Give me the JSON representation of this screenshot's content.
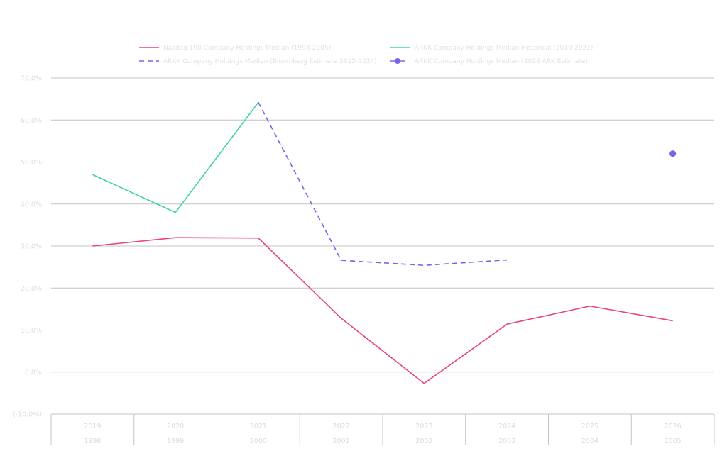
{
  "chart_data": {
    "type": "line",
    "categories_primary": [
      "2019",
      "2020",
      "2021",
      "2022",
      "2023",
      "2024",
      "2025",
      "2026"
    ],
    "categories_secondary": [
      "1998",
      "1999",
      "2000",
      "2001",
      "2002",
      "2003",
      "2004",
      "2005"
    ],
    "yticks": [
      "70.0%",
      "60.0%",
      "50.0%",
      "40.0%",
      "30.0%",
      "20.0%",
      "10.0%",
      "0.0%",
      "(-10.0%)"
    ],
    "ylim": [
      -10,
      70
    ],
    "grid": true,
    "legend_position": "top-center",
    "series": [
      {
        "name": "Nasdaq 100 Company Holdings Median (1998-2005)",
        "style": "solid",
        "color": "#e8457a",
        "values": [
          30.0,
          32.0,
          31.9,
          12.8,
          -2.7,
          11.4,
          15.7,
          12.2
        ]
      },
      {
        "name": "ARKK Company Holdings Median Historical (2019-2021)",
        "style": "solid",
        "color": "#3fd4a0",
        "values": [
          47.0,
          38.0,
          64.2,
          null,
          null,
          null,
          null,
          null
        ]
      },
      {
        "name": "ARKK Company Holdings Median (Bloomberg Estimate 2022-2024)",
        "style": "dashed",
        "color": "#7a63ec",
        "values": [
          null,
          null,
          64.2,
          26.6,
          25.4,
          26.7,
          null,
          null
        ]
      },
      {
        "name": "ARKK Company Holdings Median (2026 ARK Estimate)",
        "style": "marker",
        "color": "#7a63ec",
        "values": [
          null,
          null,
          null,
          null,
          null,
          null,
          null,
          52.0
        ]
      }
    ]
  }
}
